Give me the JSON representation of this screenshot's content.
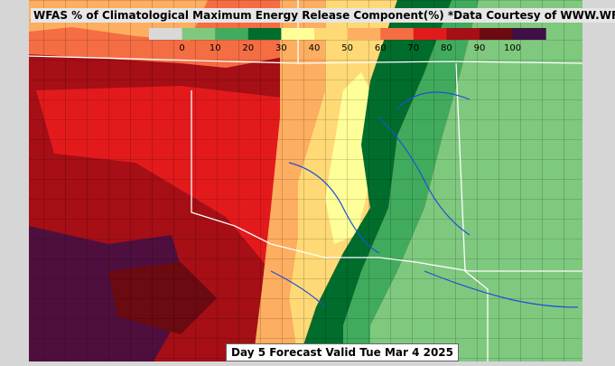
{
  "header": {
    "title": "WFAS % of Climatological Maximum Energy Release Component(%) *Data Courtesy of WWW.WFAS.NET"
  },
  "legend": {
    "ticks": [
      0,
      10,
      20,
      30,
      40,
      50,
      60,
      70,
      80,
      90,
      100
    ],
    "colors": [
      "#d9d9d9",
      "#7fc97f",
      "#41ab5d",
      "#006d2c",
      "#ffff99",
      "#fed976",
      "#fdae61",
      "#f46d43",
      "#e31a1c",
      "#a50f15",
      "#6b0a10",
      "#3f0f45"
    ]
  },
  "footer": {
    "label": "Day 5 Forecast Valid Tue Mar 4 2025"
  }
}
